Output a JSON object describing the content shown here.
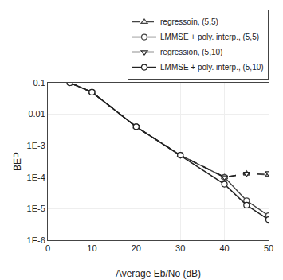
{
  "chart_data": {
    "type": "line",
    "xlabel": "Average Eb/No (dB)",
    "ylabel": "BEP",
    "log": "y",
    "grid": true,
    "legend": "upper right",
    "xlim": [
      0,
      50
    ],
    "xticks": [
      0,
      10,
      20,
      30,
      40,
      50
    ],
    "ylim": [
      1e-06,
      0.1
    ],
    "yticks": [
      {
        "value": 1e-06,
        "label": "1E-6"
      },
      {
        "value": 1e-05,
        "label": "1E-5"
      },
      {
        "value": 0.0001,
        "label": "1E-4"
      },
      {
        "value": 0.001,
        "label": "1E-3"
      },
      0.01,
      0.1
    ],
    "series": [
      {
        "name": "regressoin, (5,5)",
        "color": "#444444",
        "line_style": "dashed",
        "marker": "triangle-up",
        "x": [
          5,
          10,
          20,
          30,
          40,
          45,
          50
        ],
        "values": [
          0.1,
          0.05,
          0.004,
          0.0005,
          0.0001,
          0.00013,
          0.00012
        ]
      },
      {
        "name": "LMMSE + poly. interp., (5,5)",
        "color": "#444444",
        "line_style": "solid",
        "marker": "circle",
        "x": [
          5,
          10,
          20,
          30,
          40,
          45,
          50
        ],
        "values": [
          0.1,
          0.05,
          0.004,
          0.0005,
          0.0001,
          1.8e-05,
          6e-06
        ]
      },
      {
        "name": "regression, (5,10)",
        "color": "#222222",
        "line_style": "dashed",
        "marker": "triangle-down",
        "x": [
          5,
          10,
          20,
          30,
          40,
          45,
          50
        ],
        "values": [
          0.1,
          0.05,
          0.004,
          0.0005,
          0.0001,
          0.00013,
          0.000135
        ]
      },
      {
        "name": "LMMSE + poly. interp., (5,10)",
        "color": "#222222",
        "line_style": "solid",
        "marker": "circle",
        "x": [
          5,
          10,
          20,
          30,
          40,
          45,
          50
        ],
        "values": [
          0.1,
          0.05,
          0.004,
          0.0005,
          6e-05,
          1.3e-05,
          4.5e-06
        ]
      }
    ]
  }
}
